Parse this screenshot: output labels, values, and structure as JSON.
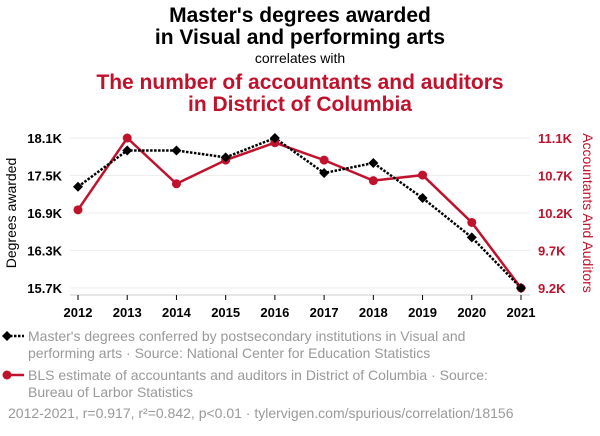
{
  "title_line1": "Master's degrees awarded",
  "title_line2": "in Visual and performing arts",
  "subtitle": "correlates with",
  "title2_line1": "The number of accountants and auditors",
  "title2_line2": "in District of Columbia",
  "colors": {
    "series1": "#000000",
    "series2": "#c0122c"
  },
  "chart_data": {
    "type": "line",
    "x": [
      2012,
      2013,
      2014,
      2015,
      2016,
      2017,
      2018,
      2019,
      2020,
      2021
    ],
    "xticks": [
      "2012",
      "2013",
      "2014",
      "2015",
      "2016",
      "2017",
      "2018",
      "2019",
      "2020",
      "2021"
    ],
    "ylabel": "Degrees awarded",
    "ylabel_right": "Accountants And Auditors",
    "ylim": [
      15.7,
      18.1
    ],
    "ylim_right": [
      9.2,
      11.1
    ],
    "yticks": [
      "15.7K",
      "16.3K",
      "16.9K",
      "17.5K",
      "18.1K"
    ],
    "yticks_right": [
      "9.2K",
      "9.7K",
      "10.2K",
      "10.7K",
      "11.1K"
    ],
    "grid": true,
    "series": [
      {
        "name": "Master's degrees conferred by postsecondary institutions in Visual and performing arts · Source: National Center for Education Statistics",
        "axis": "left",
        "unit": "K",
        "values": [
          17.32,
          17.9,
          17.9,
          17.79,
          18.1,
          17.54,
          17.7,
          17.14,
          16.51,
          15.7
        ]
      },
      {
        "name": "BLS estimate of accountants and auditors in District of Columbia · Source: Bureau of Larbor Statistics",
        "axis": "right",
        "unit": "K",
        "values": [
          10.19,
          11.1,
          10.52,
          10.82,
          11.04,
          10.82,
          10.56,
          10.63,
          10.03,
          9.2
        ]
      }
    ]
  },
  "legend": {
    "s1_line1": "Master's degrees conferred by postsecondary institutions in Visual and",
    "s1_line2": "performing arts · Source: National Center for Education Statistics",
    "s2_line1": "BLS estimate of accountants and auditors in District of Columbia · Source:",
    "s2_line2": "Bureau of Larbor Statistics"
  },
  "footer": "2012-2021, r=0.917, r²=0.842, p<0.01 · tylervigen.com/spurious/correlation/18156"
}
